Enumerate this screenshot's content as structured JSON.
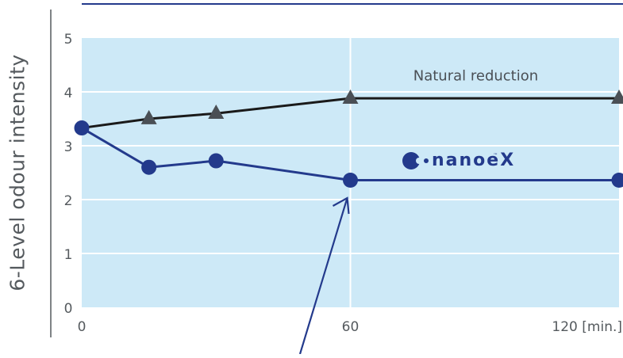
{
  "chart_data": {
    "type": "line",
    "xlabel": "",
    "ylabel": "6-Level odour intensity",
    "ylim": [
      0,
      5
    ],
    "xlim": [
      0,
      120
    ],
    "y_ticks": [
      "0",
      "1",
      "2",
      "3",
      "4",
      "5"
    ],
    "x_ticks": [
      {
        "value": 0,
        "label": "0"
      },
      {
        "value": 60,
        "label": "60"
      },
      {
        "value": 120,
        "label": "120 [min.]"
      }
    ],
    "grid": true,
    "series": [
      {
        "name": "Natural reduction",
        "color": "#1a1a1a",
        "marker": "triangle",
        "label_at": [
          88,
          4.3
        ],
        "x": [
          0,
          15,
          30,
          60,
          120
        ],
        "y": [
          3.33,
          3.5,
          3.6,
          3.88,
          3.88
        ]
      },
      {
        "name": "nanoeX",
        "color": "#233a8c",
        "marker": "circle",
        "x": [
          0,
          15,
          30,
          60,
          120
        ],
        "y": [
          3.33,
          2.6,
          2.72,
          2.36,
          2.36
        ]
      }
    ],
    "annotations": [
      {
        "type": "arrow",
        "target": [
          60,
          2.0
        ],
        "color": "#233a8c"
      }
    ]
  },
  "brand": {
    "logo_text": "nanoe",
    "logo_accent": "X",
    "tm": "™",
    "color": "#233a8c"
  },
  "colors": {
    "plot_bg": "#cde9f7",
    "grid": "#ffffff",
    "axis_text": "#555a5e",
    "top_rule": "#233a8c"
  }
}
